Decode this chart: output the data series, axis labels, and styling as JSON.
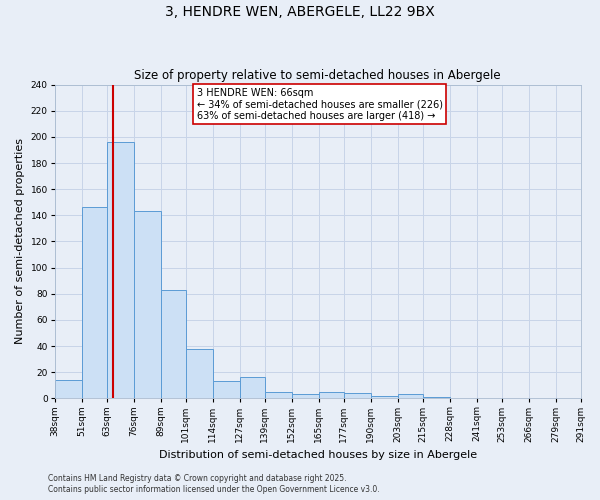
{
  "title": "3, HENDRE WEN, ABERGELE, LL22 9BX",
  "subtitle": "Size of property relative to semi-detached houses in Abergele",
  "xlabel": "Distribution of semi-detached houses by size in Abergele",
  "ylabel": "Number of semi-detached properties",
  "bar_values": [
    14,
    146,
    196,
    143,
    83,
    38,
    13,
    16,
    5,
    3,
    5,
    4,
    2,
    3,
    1,
    0,
    0,
    0,
    0,
    0
  ],
  "bin_edges": [
    38,
    51,
    63,
    76,
    89,
    101,
    114,
    127,
    139,
    152,
    165,
    177,
    190,
    203,
    215,
    228,
    241,
    253,
    266,
    279,
    291
  ],
  "bin_labels": [
    "38sqm",
    "51sqm",
    "63sqm",
    "76sqm",
    "89sqm",
    "101sqm",
    "114sqm",
    "127sqm",
    "139sqm",
    "152sqm",
    "165sqm",
    "177sqm",
    "190sqm",
    "203sqm",
    "215sqm",
    "228sqm",
    "241sqm",
    "253sqm",
    "266sqm",
    "279sqm",
    "291sqm"
  ],
  "bar_color": "#cce0f5",
  "bar_edge_color": "#5b9bd5",
  "property_value": 66,
  "vline_color": "#cc0000",
  "annotation_text": "3 HENDRE WEN: 66sqm\n← 34% of semi-detached houses are smaller (226)\n63% of semi-detached houses are larger (418) →",
  "ylim": [
    0,
    240
  ],
  "yticks": [
    0,
    20,
    40,
    60,
    80,
    100,
    120,
    140,
    160,
    180,
    200,
    220,
    240
  ],
  "background_color": "#e8eef7",
  "grid_color": "#c8d4e8",
  "footer_line1": "Contains HM Land Registry data © Crown copyright and database right 2025.",
  "footer_line2": "Contains public sector information licensed under the Open Government Licence v3.0.",
  "title_fontsize": 10,
  "subtitle_fontsize": 8.5,
  "axis_label_fontsize": 8,
  "tick_fontsize": 6.5
}
